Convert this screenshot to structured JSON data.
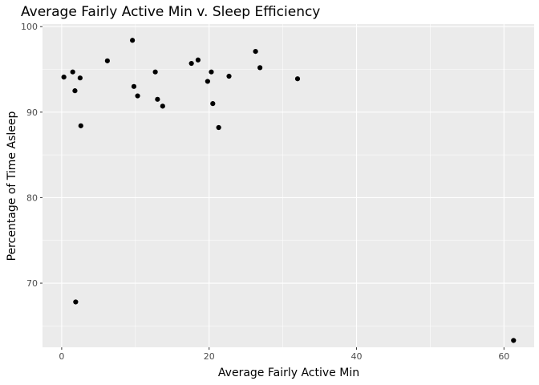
{
  "chart_data": {
    "type": "scatter",
    "title": "Average Fairly Active Min v. Sleep Efficiency",
    "xlabel": "Average Fairly Active Min",
    "ylabel": "Percentage of Time Asleep",
    "xlim": [
      -2.6,
      64.1
    ],
    "ylim": [
      62.5,
      100.3
    ],
    "x_ticks": [
      0,
      20,
      40,
      60
    ],
    "y_ticks": [
      70,
      80,
      90,
      100
    ],
    "x_tick_labels": [
      "0",
      "20",
      "40",
      "60"
    ],
    "y_tick_labels": [
      "70",
      "80",
      "90",
      "100"
    ],
    "grid": true,
    "colors": {
      "panel_background": "#ebebeb",
      "gridline": "#ffffff",
      "point": "#000000",
      "tick": "#333333"
    },
    "points": [
      {
        "x": 0.3,
        "y": 94.1
      },
      {
        "x": 1.5,
        "y": 94.7
      },
      {
        "x": 1.8,
        "y": 92.5
      },
      {
        "x": 1.9,
        "y": 67.8
      },
      {
        "x": 2.5,
        "y": 94.0
      },
      {
        "x": 2.6,
        "y": 88.4
      },
      {
        "x": 6.2,
        "y": 96.0
      },
      {
        "x": 9.6,
        "y": 98.4
      },
      {
        "x": 9.8,
        "y": 93.0
      },
      {
        "x": 10.3,
        "y": 91.9
      },
      {
        "x": 12.7,
        "y": 94.7
      },
      {
        "x": 13.0,
        "y": 91.5
      },
      {
        "x": 13.7,
        "y": 90.7
      },
      {
        "x": 17.6,
        "y": 95.7
      },
      {
        "x": 18.5,
        "y": 96.1
      },
      {
        "x": 19.8,
        "y": 93.6
      },
      {
        "x": 20.3,
        "y": 94.7
      },
      {
        "x": 20.5,
        "y": 91.0
      },
      {
        "x": 21.3,
        "y": 88.2
      },
      {
        "x": 22.7,
        "y": 94.2
      },
      {
        "x": 26.3,
        "y": 97.1
      },
      {
        "x": 26.9,
        "y": 95.2
      },
      {
        "x": 32.0,
        "y": 93.9
      },
      {
        "x": 61.3,
        "y": 63.3
      }
    ]
  }
}
